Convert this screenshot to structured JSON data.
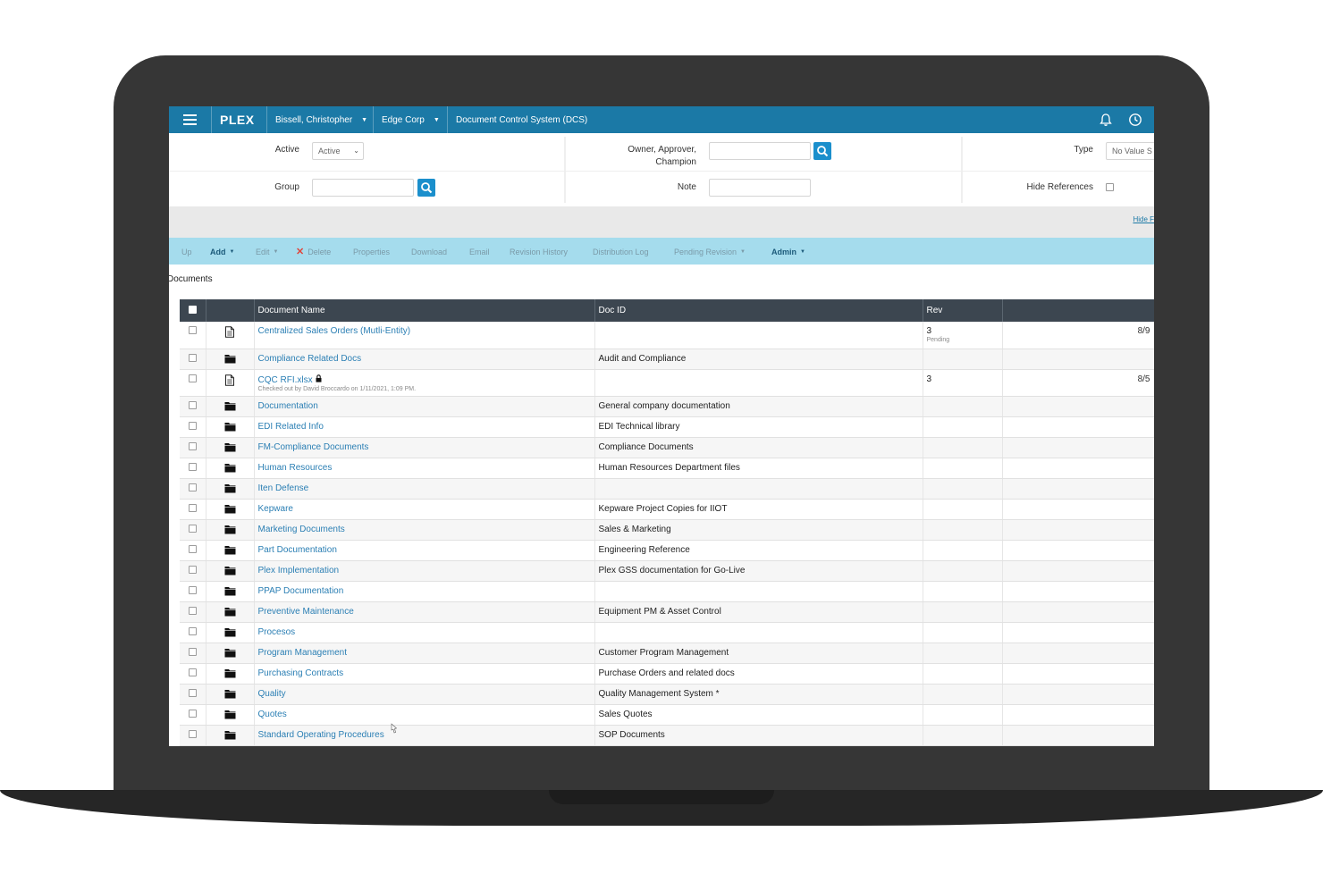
{
  "topbar": {
    "logo": "PLEX",
    "user": "Bissell, Christopher",
    "company": "Edge Corp",
    "app": "Document Control System (DCS)"
  },
  "filters": {
    "active_label": "Active",
    "active_value": "Active",
    "owner_label_1": "Owner, Approver,",
    "owner_label_2": "Champion",
    "type_label": "Type",
    "type_value": "No Value S",
    "group_label": "Group",
    "note_label": "Note",
    "hide_refs_label": "Hide References",
    "hide_link": "Hide F"
  },
  "actions": {
    "up": "Up",
    "add": "Add",
    "edit": "Edit",
    "delete": "Delete",
    "properties": "Properties",
    "download": "Download",
    "email": "Email",
    "revision_history": "Revision History",
    "distribution_log": "Distribution Log",
    "pending_revision": "Pending Revision",
    "admin": "Admin"
  },
  "section_title": "Documents",
  "table": {
    "headers": [
      "Document Name",
      "Doc ID",
      "Rev"
    ],
    "rows": [
      {
        "icon": "file-icon",
        "name": "Centralized Sales Orders (Mutli-Entity)",
        "doc_id": "",
        "rev": "3",
        "rev_sub": "Pending",
        "date": "8/9",
        "sub": ""
      },
      {
        "icon": "folder-icon",
        "name": "Compliance Related Docs",
        "doc_id": "Audit and Compliance",
        "rev": "",
        "rev_sub": "",
        "date": "",
        "sub": ""
      },
      {
        "icon": "file-icon",
        "name": "CQC RFI.xlsx",
        "doc_id": "",
        "rev": "3",
        "rev_sub": "",
        "date": "8/5",
        "sub": "Checked out by David Broccardo on 1/11/2021, 1:09 PM."
      },
      {
        "icon": "folder-icon",
        "name": "Documentation",
        "doc_id": "General company documentation",
        "rev": "",
        "rev_sub": "",
        "date": "",
        "sub": ""
      },
      {
        "icon": "folder-icon",
        "name": "EDI Related Info",
        "doc_id": "EDI Technical library",
        "rev": "",
        "rev_sub": "",
        "date": "",
        "sub": ""
      },
      {
        "icon": "folder-icon",
        "name": "FM-Compliance Documents",
        "doc_id": "Compliance Documents",
        "rev": "",
        "rev_sub": "",
        "date": "",
        "sub": ""
      },
      {
        "icon": "folder-icon",
        "name": "Human Resources",
        "doc_id": "Human Resources Department files",
        "rev": "",
        "rev_sub": "",
        "date": "",
        "sub": ""
      },
      {
        "icon": "folder-icon",
        "name": "Iten Defense",
        "doc_id": "",
        "rev": "",
        "rev_sub": "",
        "date": "",
        "sub": ""
      },
      {
        "icon": "folder-icon",
        "name": "Kepware",
        "doc_id": "Kepware Project Copies for IIOT",
        "rev": "",
        "rev_sub": "",
        "date": "",
        "sub": ""
      },
      {
        "icon": "folder-icon",
        "name": "Marketing Documents",
        "doc_id": "Sales & Marketing",
        "rev": "",
        "rev_sub": "",
        "date": "",
        "sub": ""
      },
      {
        "icon": "folder-icon",
        "name": "Part Documentation",
        "doc_id": "Engineering Reference",
        "rev": "",
        "rev_sub": "",
        "date": "",
        "sub": ""
      },
      {
        "icon": "folder-icon",
        "name": "Plex Implementation",
        "doc_id": "Plex GSS documentation for Go-Live",
        "rev": "",
        "rev_sub": "",
        "date": "",
        "sub": ""
      },
      {
        "icon": "folder-icon",
        "name": "PPAP Documentation",
        "doc_id": "",
        "rev": "",
        "rev_sub": "",
        "date": "",
        "sub": ""
      },
      {
        "icon": "folder-icon",
        "name": "Preventive Maintenance",
        "doc_id": "Equipment PM & Asset Control",
        "rev": "",
        "rev_sub": "",
        "date": "",
        "sub": ""
      },
      {
        "icon": "folder-icon",
        "name": "Procesos",
        "doc_id": "",
        "rev": "",
        "rev_sub": "",
        "date": "",
        "sub": ""
      },
      {
        "icon": "folder-icon",
        "name": "Program Management",
        "doc_id": "Customer Program Management",
        "rev": "",
        "rev_sub": "",
        "date": "",
        "sub": ""
      },
      {
        "icon": "folder-icon",
        "name": "Purchasing Contracts",
        "doc_id": "Purchase Orders and related docs",
        "rev": "",
        "rev_sub": "",
        "date": "",
        "sub": ""
      },
      {
        "icon": "folder-icon",
        "name": "Quality",
        "doc_id": "Quality Management System *",
        "rev": "",
        "rev_sub": "",
        "date": "",
        "sub": ""
      },
      {
        "icon": "folder-icon",
        "name": "Quotes",
        "doc_id": "Sales Quotes",
        "rev": "",
        "rev_sub": "",
        "date": "",
        "sub": ""
      },
      {
        "icon": "folder-icon",
        "name": "Standard Operating Procedures",
        "doc_id": "SOP Documents",
        "rev": "",
        "rev_sub": "",
        "date": "",
        "sub": ""
      }
    ]
  },
  "colors": {
    "topbar": "#1b79a6",
    "actionbar": "#a5dced",
    "table_header": "#3c4650",
    "link": "#2b7fb4",
    "delete_x": "#e0463c"
  }
}
